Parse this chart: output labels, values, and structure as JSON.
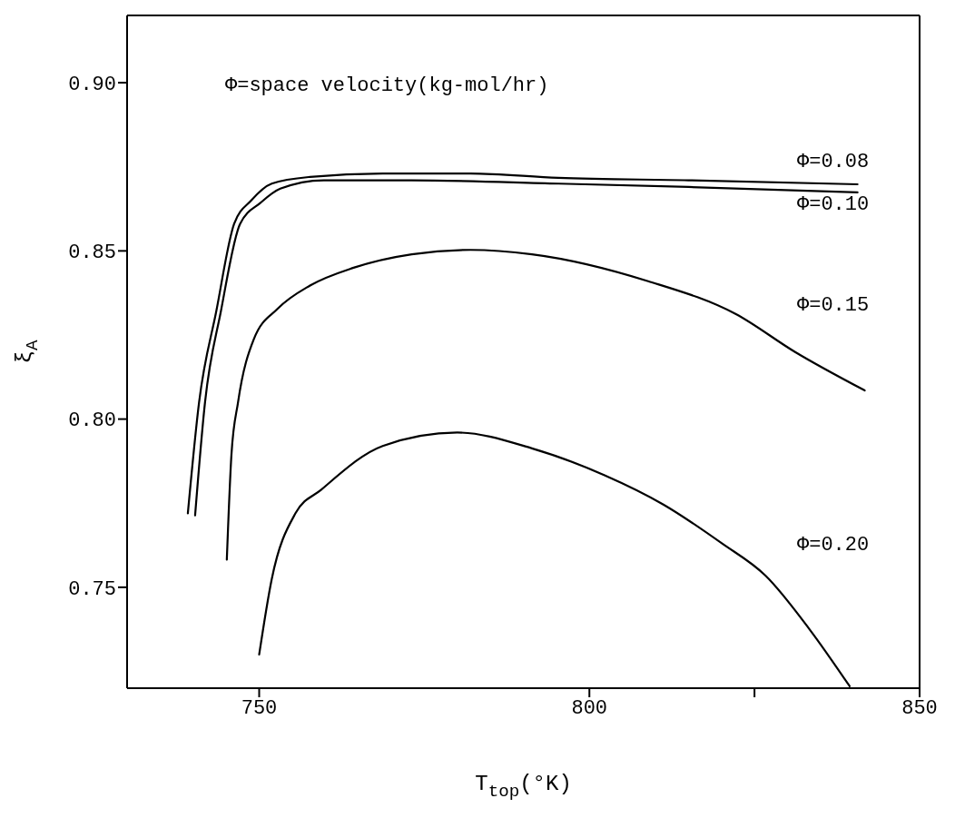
{
  "chart_data": {
    "type": "line",
    "xlabel": "T$_{top}$(°K)",
    "ylabel": "ξ$_{A}$",
    "xlim": [
      730,
      850
    ],
    "ylim": [
      0.72,
      0.92
    ],
    "xticks": [
      750,
      800,
      {
        "value": 825,
        "label": null
      },
      850
    ],
    "yticks": [
      {
        "value": 0.75,
        "label": "0.75"
      },
      {
        "value": 0.8,
        "label": "0.80"
      },
      {
        "value": 0.85,
        "label": "0.85"
      },
      {
        "value": 0.9,
        "label": "0.90"
      }
    ],
    "marker": "none",
    "line_style": "solid",
    "series": [
      {
        "color": "#000000",
        "x": [
          739.2,
          740.9,
          743.5,
          746.2,
          748.8,
          751.9,
          757.7,
          768.7,
          782,
          795.3,
          815,
          840.6
        ],
        "values": [
          0.772,
          0.805,
          0.832,
          0.858,
          0.865,
          0.87,
          0.872,
          0.873,
          0.873,
          0.8717,
          0.871,
          0.8698
        ]
      },
      {
        "color": "#000000",
        "x": [
          740.3,
          741.8,
          744.2,
          747.1,
          750.2,
          753.2,
          759.8,
          773.1,
          795.3,
          815,
          840.6
        ],
        "values": [
          0.7714,
          0.805,
          0.832,
          0.858,
          0.8643,
          0.8685,
          0.871,
          0.871,
          0.87,
          0.869,
          0.8674
        ]
      },
      {
        "color": "#000000",
        "x": [
          745.1,
          745.8,
          746.8,
          749.2,
          752.8,
          757.7,
          764.3,
          773.1,
          782,
          791.3,
          808.9,
          822.2,
          831.1,
          841.7
        ],
        "values": [
          0.7582,
          0.7894,
          0.805,
          0.8238,
          0.8328,
          0.8397,
          0.845,
          0.849,
          0.8503,
          0.849,
          0.841,
          0.8312,
          0.82,
          0.8085
        ]
      },
      {
        "color": "#000000",
        "x": [
          750,
          751.9,
          755.5,
          759.4,
          768.7,
          780,
          791.3,
          802.3,
          811.2,
          820.1,
          826.7,
          833.3,
          839.4
        ],
        "values": [
          0.73,
          0.7524,
          0.772,
          0.779,
          0.792,
          0.796,
          0.7913,
          0.7833,
          0.7746,
          0.763,
          0.7534,
          0.7376,
          0.7206
        ]
      }
    ],
    "annotations": [
      "Φ=space velocity(kg-mol/hr)",
      "Φ=0.08",
      "Φ=0.10",
      "Φ=0.15",
      "Φ=0.20"
    ]
  }
}
